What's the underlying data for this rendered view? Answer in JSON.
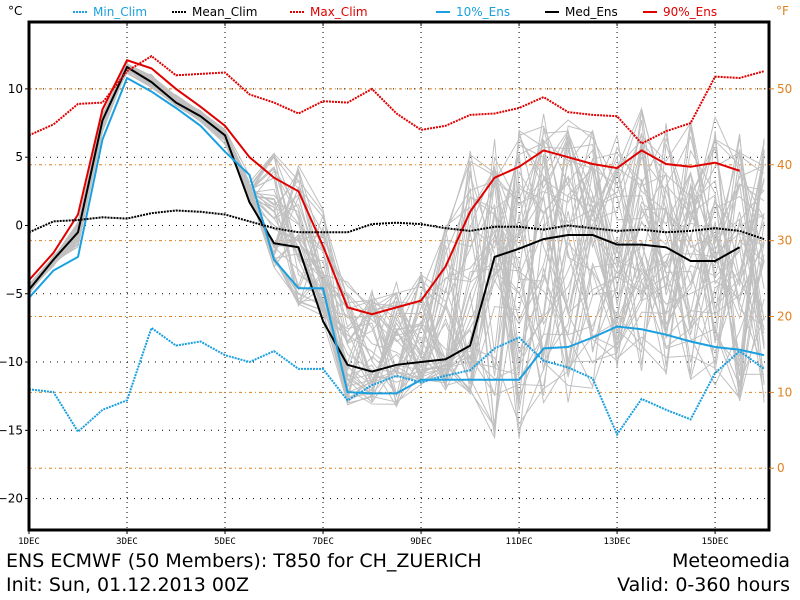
{
  "chart_data": {
    "type": "line",
    "title": "ENS ECMWF (50 Members): T850 for CH_ZUERICH",
    "subtitle": "Init: Sun, 01.12.2013 00Z",
    "source_label": "Meteomedia",
    "valid_label": "Valid: 0-360 hours",
    "ylabel_left": "°C",
    "ylabel_right": "°F",
    "ylim": [
      -22.3,
      14.9
    ],
    "xlim_days": [
      0,
      15.1
    ],
    "yticks": [
      -20,
      -15,
      -10,
      -5,
      0,
      5,
      10
    ],
    "yticks_f": [
      0,
      10,
      20,
      30,
      40,
      50
    ],
    "xticks": [
      {
        "day": 0,
        "label": "1DEC"
      },
      {
        "day": 2,
        "label": "3DEC"
      },
      {
        "day": 4,
        "label": "5DEC"
      },
      {
        "day": 6,
        "label": "7DEC"
      },
      {
        "day": 8,
        "label": "9DEC"
      },
      {
        "day": 10,
        "label": "11DEC"
      },
      {
        "day": 12,
        "label": "13DEC"
      },
      {
        "day": 14,
        "label": "15DEC"
      }
    ],
    "grid": true,
    "legend_position": "top",
    "legend": [
      {
        "name": "Min_Clim",
        "color": "#1aa0e0",
        "style": "dotted"
      },
      {
        "name": "Mean_Clim",
        "color": "#000000",
        "style": "dotted"
      },
      {
        "name": "Max_Clim",
        "color": "#e00000",
        "style": "dotted"
      },
      {
        "name": "10%_Ens",
        "color": "#1aa0e0",
        "style": "solid"
      },
      {
        "name": "Med_Ens",
        "color": "#000000",
        "style": "solid"
      },
      {
        "name": "90%_Ens",
        "color": "#e00000",
        "style": "solid"
      }
    ],
    "series": [
      {
        "name": "90%_Ens",
        "color": "#e00000",
        "style": "solid",
        "x": [
          0,
          0.5,
          1,
          1.5,
          2,
          2.5,
          3,
          3.5,
          4,
          4.5,
          5,
          5.5,
          6,
          6.5,
          7,
          7.5,
          8,
          8.5,
          9,
          9.5,
          10,
          10.5,
          11,
          11.5,
          12,
          12.5,
          13,
          13.5,
          14,
          14.5
        ],
        "values": [
          -4.0,
          -2.0,
          0.8,
          8.5,
          12.1,
          11.5,
          10.0,
          8.7,
          7.3,
          5.0,
          3.5,
          2.5,
          -1.5,
          -6.0,
          -6.5,
          -6.0,
          -5.5,
          -3.0,
          1.0,
          3.5,
          4.3,
          5.5,
          5.0,
          4.5,
          4.2,
          5.5,
          4.5,
          4.3,
          4.6,
          4.0
        ]
      },
      {
        "name": "Med_Ens",
        "color": "#000000",
        "style": "solid",
        "x": [
          0,
          0.5,
          1,
          1.5,
          2,
          2.5,
          3,
          3.5,
          4,
          4.5,
          5,
          5.5,
          6,
          6.5,
          7,
          7.5,
          8,
          8.5,
          9,
          9.5,
          10,
          10.5,
          11,
          11.5,
          12,
          12.5,
          13,
          13.5,
          14,
          14.5
        ],
        "values": [
          -4.7,
          -2.5,
          -0.5,
          7.7,
          11.6,
          10.5,
          9.0,
          8.0,
          6.6,
          1.7,
          -1.3,
          -1.6,
          -7.0,
          -10.2,
          -10.7,
          -10.2,
          -10.0,
          -9.8,
          -8.8,
          -2.3,
          -1.7,
          -1.0,
          -0.7,
          -0.7,
          -1.4,
          -1.4,
          -1.6,
          -2.6,
          -2.6,
          -1.6
        ]
      },
      {
        "name": "10%_Ens",
        "color": "#1aa0e0",
        "style": "solid",
        "x": [
          0,
          0.5,
          1,
          1.5,
          2,
          2.5,
          3,
          3.5,
          4,
          4.5,
          5,
          5.5,
          6,
          6.5,
          7,
          7.5,
          8,
          8.5,
          9,
          9.5,
          10,
          10.5,
          11,
          11.5,
          12,
          12.5,
          13,
          13.5,
          14,
          14.5,
          15
        ],
        "values": [
          -5.3,
          -3.3,
          -2.3,
          6.3,
          10.8,
          9.8,
          8.6,
          7.3,
          5.4,
          3.7,
          -2.5,
          -4.6,
          -4.6,
          -12.2,
          -12.3,
          -12.3,
          -11.3,
          -11.3,
          -11.3,
          -11.3,
          -11.3,
          -9.0,
          -8.9,
          -8.2,
          -7.4,
          -7.6,
          -8.0,
          -8.5,
          -8.9,
          -9.1,
          -9.5
        ]
      },
      {
        "name": "Max_Clim",
        "color": "#e00000",
        "style": "dotted",
        "x": [
          0,
          0.5,
          1,
          1.5,
          2,
          2.5,
          3,
          3.5,
          4,
          4.5,
          5,
          5.5,
          6,
          6.5,
          7,
          7.5,
          8,
          8.5,
          9,
          9.5,
          10,
          10.5,
          11,
          11.5,
          12,
          12.5,
          13,
          13.5,
          14,
          14.5,
          15
        ],
        "values": [
          6.6,
          7.4,
          8.9,
          9.0,
          11.3,
          12.4,
          11.0,
          11.1,
          11.2,
          9.6,
          9.0,
          8.2,
          9.1,
          9.0,
          10.0,
          8.2,
          7.0,
          7.3,
          8.1,
          8.2,
          8.6,
          9.4,
          8.3,
          8.1,
          8.0,
          6.0,
          6.9,
          7.5,
          10.9,
          10.8,
          11.3
        ]
      },
      {
        "name": "Mean_Clim",
        "color": "#000000",
        "style": "dotted",
        "x": [
          0,
          0.5,
          1,
          1.5,
          2,
          2.5,
          3,
          3.5,
          4,
          4.5,
          5,
          5.5,
          6,
          6.5,
          7,
          7.5,
          8,
          8.5,
          9,
          9.5,
          10,
          10.5,
          11,
          11.5,
          12,
          12.5,
          13,
          13.5,
          14,
          14.5,
          15
        ],
        "values": [
          -0.5,
          0.3,
          0.4,
          0.6,
          0.5,
          0.9,
          1.1,
          1.0,
          0.8,
          0.3,
          -0.2,
          -0.5,
          -0.5,
          -0.5,
          0.1,
          0.2,
          0.1,
          -0.2,
          -0.4,
          -0.1,
          -0.1,
          -0.3,
          0.0,
          -0.2,
          -0.4,
          -0.3,
          -0.5,
          -0.4,
          -0.2,
          -0.4,
          -1.0
        ]
      },
      {
        "name": "Min_Clim",
        "color": "#1aa0e0",
        "style": "dotted",
        "x": [
          0,
          0.5,
          1,
          1.5,
          2,
          2.5,
          3,
          3.5,
          4,
          4.5,
          5,
          5.5,
          6,
          6.5,
          7,
          7.5,
          8,
          8.5,
          9,
          9.5,
          10,
          10.5,
          11,
          11.5,
          12,
          12.5,
          13,
          13.5,
          14,
          14.5,
          15
        ],
        "values": [
          -12.0,
          -12.2,
          -15.1,
          -13.5,
          -12.8,
          -7.5,
          -8.8,
          -8.5,
          -9.5,
          -10.0,
          -9.2,
          -10.5,
          -10.5,
          -12.8,
          -11.7,
          -11.0,
          -11.5,
          -11.0,
          -10.6,
          -9.0,
          -8.2,
          -9.9,
          -10.4,
          -11.2,
          -15.3,
          -12.7,
          -13.5,
          -14.2,
          -10.8,
          -9.2,
          -10.5
        ]
      }
    ],
    "ensemble_members": {
      "count": 50,
      "color": "#c0c0c0",
      "note": "50 individual member traces drawn as light gray lines"
    }
  }
}
